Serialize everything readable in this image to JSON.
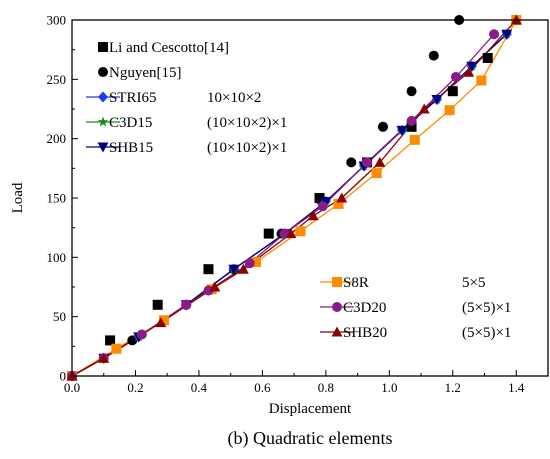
{
  "chart_data": {
    "type": "scatter",
    "caption": "(b) Quadratic elements",
    "xlabel": "Displacement",
    "ylabel": "Load",
    "xlim": [
      0.0,
      1.5
    ],
    "ylim": [
      0,
      300
    ],
    "xticks": [
      "0.0",
      "0.2",
      "0.4",
      "0.6",
      "0.8",
      "1.0",
      "1.2",
      "1.4"
    ],
    "yticks": [
      "0",
      "50",
      "100",
      "150",
      "200",
      "250",
      "300"
    ],
    "grid": false,
    "legend_groups": [
      {
        "placement": "top-left",
        "entries": [
          0,
          1,
          2,
          3,
          4
        ]
      },
      {
        "placement": "bottom-right",
        "entries": [
          5,
          6,
          7
        ]
      }
    ],
    "series": [
      {
        "name": "Li and Cescotto[14]",
        "mesh": "",
        "marker": "square",
        "color": "#000000",
        "line": false,
        "x": [
          0.0,
          0.12,
          0.27,
          0.43,
          0.62,
          0.78,
          0.93,
          1.07,
          1.2,
          1.31
        ],
        "y": [
          0,
          30,
          60,
          90,
          120,
          150,
          180,
          210,
          240,
          268
        ]
      },
      {
        "name": "Nguyen[15]",
        "mesh": "",
        "marker": "circle",
        "color": "#000000",
        "line": false,
        "x": [
          0.0,
          0.19,
          0.36,
          0.51,
          0.66,
          0.78,
          0.88,
          0.98,
          1.07,
          1.14,
          1.22
        ],
        "y": [
          0,
          30,
          60,
          90,
          120,
          149,
          180,
          210,
          240,
          270,
          300
        ]
      },
      {
        "name": "STRI65",
        "mesh": "10×10×2",
        "marker": "diamond",
        "color": "#1a3cf5",
        "line": true,
        "x": [
          0.0,
          0.1,
          0.21,
          0.36,
          0.51,
          0.67,
          0.8,
          0.92,
          1.04,
          1.15,
          1.26,
          1.37
        ],
        "y": [
          0,
          15,
          33,
          60,
          90,
          120,
          147,
          177,
          207,
          233,
          261,
          288
        ]
      },
      {
        "name": "C3D15",
        "mesh": "(10×10×2)×1",
        "marker": "star",
        "color": "#1a8c1a",
        "line": true,
        "x": [
          0.0,
          0.1,
          0.21,
          0.36,
          0.51,
          0.67,
          0.8,
          0.92,
          1.04,
          1.15,
          1.26,
          1.37
        ],
        "y": [
          0,
          15,
          33,
          60,
          90,
          120,
          147,
          177,
          207,
          233,
          261,
          288
        ]
      },
      {
        "name": "SHB15",
        "mesh": "(10×10×2)×1",
        "marker": "triangle-down",
        "color": "#000080",
        "line": true,
        "x": [
          0.0,
          0.1,
          0.21,
          0.36,
          0.51,
          0.67,
          0.8,
          0.92,
          1.04,
          1.15,
          1.26,
          1.37
        ],
        "y": [
          0,
          15,
          33,
          60,
          90,
          120,
          147,
          177,
          207,
          233,
          261,
          288
        ]
      },
      {
        "name": "S8R",
        "mesh": "5×5",
        "marker": "square",
        "color": "#ff8c00",
        "line": true,
        "x": [
          0.0,
          0.14,
          0.29,
          0.44,
          0.58,
          0.72,
          0.84,
          0.96,
          1.08,
          1.19,
          1.29,
          1.4
        ],
        "y": [
          0,
          23,
          47,
          73,
          96,
          122,
          145,
          171,
          199,
          224,
          249,
          300
        ]
      },
      {
        "name": "C3D20",
        "mesh": "(5×5)×1",
        "marker": "circle",
        "color": "#8b1a8b",
        "line": true,
        "x": [
          0.0,
          0.1,
          0.22,
          0.36,
          0.43,
          0.56,
          0.67,
          0.79,
          0.93,
          1.07,
          1.21,
          1.33
        ],
        "y": [
          0,
          15,
          35,
          60,
          72,
          95,
          120,
          143,
          180,
          215,
          252,
          288
        ]
      },
      {
        "name": "SHB20",
        "mesh": "(5×5)×1",
        "marker": "triangle-up",
        "color": "#8b0000",
        "line": true,
        "x": [
          0.0,
          0.1,
          0.28,
          0.45,
          0.54,
          0.69,
          0.76,
          0.85,
          0.97,
          1.11,
          1.25,
          1.4
        ],
        "y": [
          0,
          15,
          45,
          75,
          90,
          120,
          135,
          150,
          180,
          225,
          256,
          300
        ]
      }
    ]
  }
}
